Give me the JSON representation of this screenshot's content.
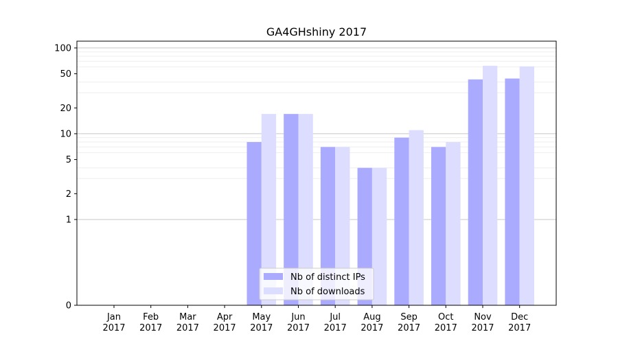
{
  "chart_data": {
    "type": "bar",
    "title": "GA4GHshiny 2017",
    "xlabel": "",
    "ylabel": "",
    "yscale": "symlog",
    "ylim": [
      0,
      120
    ],
    "categories": [
      {
        "month": "Jan",
        "year": "2017"
      },
      {
        "month": "Feb",
        "year": "2017"
      },
      {
        "month": "Mar",
        "year": "2017"
      },
      {
        "month": "Apr",
        "year": "2017"
      },
      {
        "month": "May",
        "year": "2017"
      },
      {
        "month": "Jun",
        "year": "2017"
      },
      {
        "month": "Jul",
        "year": "2017"
      },
      {
        "month": "Aug",
        "year": "2017"
      },
      {
        "month": "Sep",
        "year": "2017"
      },
      {
        "month": "Oct",
        "year": "2017"
      },
      {
        "month": "Nov",
        "year": "2017"
      },
      {
        "month": "Dec",
        "year": "2017"
      }
    ],
    "series": [
      {
        "name": "Nb of distinct IPs",
        "color": "#aaaaff",
        "values": [
          0,
          0,
          0,
          0,
          8,
          17,
          7,
          4,
          9,
          7,
          43,
          44
        ]
      },
      {
        "name": "Nb of downloads",
        "color": "#ddddff",
        "values": [
          0,
          0,
          0,
          0,
          17,
          17,
          7,
          4,
          11,
          8,
          62,
          61
        ]
      }
    ],
    "yticks": [
      {
        "value": 0,
        "label": "0"
      },
      {
        "value": 1,
        "label": "1"
      },
      {
        "value": 2,
        "label": "2"
      },
      {
        "value": 5,
        "label": "5"
      },
      {
        "value": 10,
        "label": "10"
      },
      {
        "value": 20,
        "label": "20"
      },
      {
        "value": 50,
        "label": "50"
      },
      {
        "value": 100,
        "label": "100"
      }
    ],
    "major_grid": [
      1,
      10,
      100
    ],
    "minor_grid": [
      3,
      4,
      6,
      7,
      8,
      9,
      30,
      40,
      60,
      70,
      80,
      90
    ],
    "grid": true,
    "legend_position": "bottom-center"
  }
}
